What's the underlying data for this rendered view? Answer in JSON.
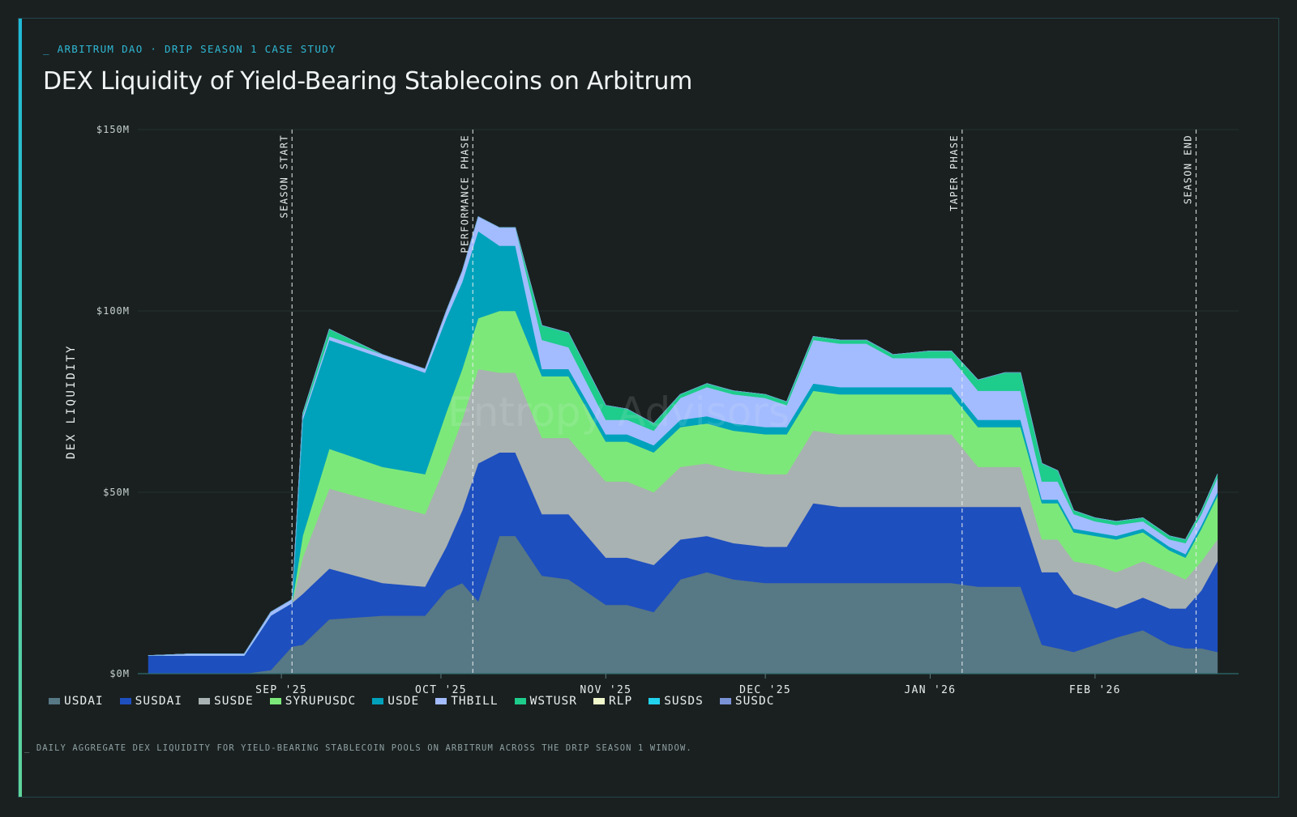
{
  "header": {
    "eyebrow": "_ ARBITRUM DAO · DRIP SEASON 1 CASE STUDY",
    "title": "DEX Liquidity of Yield-Bearing Stablecoins on Arbitrum"
  },
  "footnote": "_ DAILY AGGREGATE DEX LIQUIDITY FOR YIELD-BEARING STABLECOIN POOLS ON ARBITRUM ACROSS THE DRIP SEASON 1 WINDOW.",
  "watermark": "Entropy Advisors",
  "colors": {
    "background": "#1a2020",
    "accent": "#2fb8d4",
    "gridline": "#243030"
  },
  "chart_data": {
    "type": "area",
    "stacked": true,
    "ylabel": "DEX LIQUIDITY",
    "ylim": [
      0,
      150
    ],
    "yticks": [
      0,
      50,
      100,
      150
    ],
    "ytick_labels": [
      "$0M",
      "$50M",
      "$100M",
      "$150M"
    ],
    "xlim": [
      "2025-08-05",
      "2026-02-28"
    ],
    "xticks": [
      "2025-09-01",
      "2025-10-01",
      "2025-11-01",
      "2025-12-01",
      "2026-01-01",
      "2026-02-01"
    ],
    "xtick_labels": [
      "SEP '25",
      "OCT '25",
      "NOV '25",
      "DEC '25",
      "JAN '26",
      "FEB '26"
    ],
    "grid": true,
    "legend_position": "bottom",
    "annotations": [
      {
        "date": "2025-09-03",
        "label": "SEASON START"
      },
      {
        "date": "2025-10-07",
        "label": "PERFORMANCE PHASE"
      },
      {
        "date": "2026-01-07",
        "label": "TAPER PHASE"
      },
      {
        "date": "2026-02-20",
        "label": "SEASON END"
      }
    ],
    "x": [
      "2025-08-07",
      "2025-08-15",
      "2025-08-25",
      "2025-08-30",
      "2025-09-03",
      "2025-09-05",
      "2025-09-10",
      "2025-09-20",
      "2025-09-28",
      "2025-10-02",
      "2025-10-05",
      "2025-10-08",
      "2025-10-12",
      "2025-10-15",
      "2025-10-20",
      "2025-10-25",
      "2025-11-01",
      "2025-11-05",
      "2025-11-10",
      "2025-11-15",
      "2025-11-20",
      "2025-11-25",
      "2025-12-01",
      "2025-12-05",
      "2025-12-10",
      "2025-12-15",
      "2025-12-20",
      "2025-12-25",
      "2026-01-01",
      "2026-01-05",
      "2026-01-10",
      "2026-01-15",
      "2026-01-18",
      "2026-01-22",
      "2026-01-25",
      "2026-01-28",
      "2026-02-01",
      "2026-02-05",
      "2026-02-10",
      "2026-02-15",
      "2026-02-18",
      "2026-02-21",
      "2026-02-24"
    ],
    "series": [
      {
        "name": "USDAI",
        "color": "#577885",
        "values": [
          0,
          0,
          0,
          1,
          7.5,
          8,
          15,
          16,
          16,
          23,
          25,
          20,
          38,
          38,
          27,
          26,
          19,
          19,
          17,
          26,
          28,
          26,
          25,
          25,
          25,
          25,
          25,
          25,
          25,
          25,
          24,
          24,
          24,
          8,
          7,
          6,
          8,
          10,
          12,
          8,
          7,
          7,
          6
        ]
      },
      {
        "name": "SUSDAI",
        "color": "#1e4fbf",
        "values": [
          5,
          5,
          5,
          15,
          12,
          14,
          14,
          9,
          8,
          12,
          20,
          38,
          23,
          23,
          17,
          18,
          13,
          13,
          13,
          11,
          10,
          10,
          10,
          10,
          22,
          21,
          21,
          21,
          21,
          21,
          22,
          22,
          22,
          20,
          21,
          16,
          12,
          8,
          9,
          10,
          11,
          16,
          25
        ]
      },
      {
        "name": "SUSDE",
        "color": "#a9b2b2",
        "values": [
          0,
          0,
          0,
          0,
          0,
          10,
          22,
          22,
          20,
          23,
          25,
          26,
          22,
          22,
          21,
          21,
          21,
          21,
          20,
          20,
          20,
          20,
          20,
          20,
          20,
          20,
          20,
          20,
          20,
          20,
          11,
          11,
          11,
          9,
          9,
          9,
          10,
          10,
          10,
          10,
          8,
          8,
          6
        ]
      },
      {
        "name": "SYRUPUSDC",
        "color": "#7de87a",
        "values": [
          0,
          0,
          0,
          0,
          0,
          6,
          11,
          10,
          11,
          14,
          14,
          14,
          17,
          17,
          17,
          17,
          11,
          11,
          11,
          11,
          11,
          11,
          11,
          11,
          11,
          11,
          11,
          11,
          11,
          11,
          11,
          11,
          11,
          10,
          10,
          8,
          8,
          9,
          8,
          6,
          6,
          9,
          12
        ]
      },
      {
        "name": "USDE",
        "color": "#00a2bb",
        "values": [
          0,
          0,
          0,
          0,
          0,
          32,
          30,
          30,
          28,
          26,
          24,
          24,
          18,
          18,
          2,
          2,
          2,
          2,
          2,
          2,
          2,
          2,
          2,
          2,
          2,
          2,
          2,
          2,
          2,
          2,
          2,
          2,
          2,
          1,
          1,
          1,
          1,
          1,
          1,
          1,
          1,
          1,
          1
        ]
      },
      {
        "name": "THBILL",
        "color": "#a3bcff",
        "values": [
          0,
          0.5,
          0.5,
          1,
          1,
          1,
          1,
          1,
          1,
          2,
          3,
          4,
          5,
          5,
          8,
          6,
          4,
          4,
          4,
          6,
          8,
          8,
          8,
          6,
          12,
          12,
          12,
          8,
          8,
          8,
          8,
          8,
          8,
          5,
          5,
          4,
          3,
          3,
          2,
          2,
          3,
          3,
          4
        ]
      },
      {
        "name": "WSTUSR",
        "color": "#1ecc8c",
        "values": [
          0,
          0,
          0,
          0,
          0,
          0.8,
          2,
          0,
          0,
          0,
          0,
          0,
          0,
          0,
          4,
          4,
          4,
          3,
          2,
          1,
          1,
          1,
          1,
          1,
          1,
          1,
          1,
          1,
          2,
          2,
          3,
          5,
          5,
          5,
          3,
          1,
          1,
          1,
          1,
          1,
          1,
          1,
          1
        ]
      },
      {
        "name": "RLP",
        "color": "#f0f8cc",
        "values": [
          0,
          0,
          0,
          0,
          0,
          0,
          0,
          0,
          0,
          0,
          0,
          0,
          0,
          0,
          0,
          0,
          0,
          0,
          0,
          0,
          0,
          0,
          0,
          0,
          0,
          0,
          0,
          0,
          0,
          0,
          0,
          0,
          0,
          0,
          0,
          0,
          0,
          0,
          0,
          0,
          0,
          0,
          0
        ]
      },
      {
        "name": "SUSDS",
        "color": "#22d3ee",
        "values": [
          0,
          0,
          0,
          0,
          0,
          0,
          0,
          0,
          0,
          0,
          0,
          0,
          0,
          0,
          0,
          0,
          0,
          0,
          0,
          0,
          0,
          0,
          0,
          0,
          0,
          0,
          0,
          0,
          0,
          0,
          0,
          0,
          0,
          0,
          0,
          0,
          0,
          0,
          0,
          0,
          0,
          0,
          0
        ]
      },
      {
        "name": "SUSDC",
        "color": "#7a92d6",
        "values": [
          0,
          0,
          0,
          0,
          0,
          0,
          0,
          0,
          0,
          0,
          0,
          0,
          0,
          0,
          0,
          0,
          0,
          0,
          0,
          0,
          0,
          0,
          0,
          0,
          0,
          0,
          0,
          0,
          0,
          0,
          0,
          0,
          0,
          0,
          0,
          0,
          0,
          0,
          0,
          0,
          0,
          0,
          0
        ]
      }
    ]
  }
}
